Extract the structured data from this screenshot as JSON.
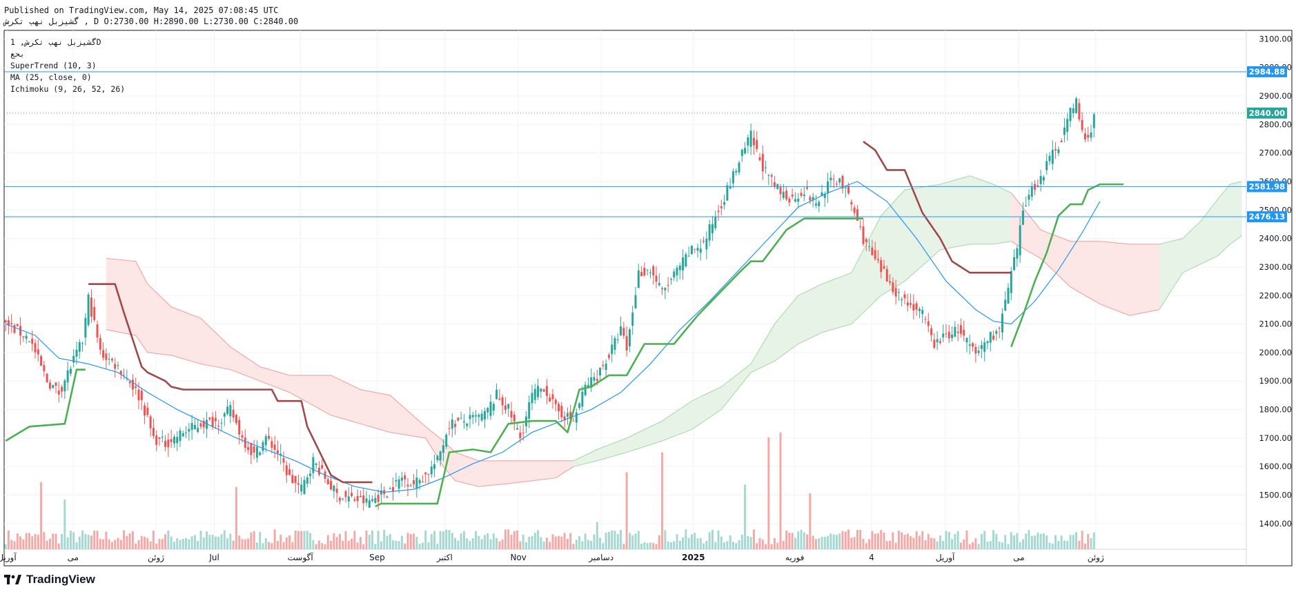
{
  "header": {
    "published": "Published on TradingView.com, May 14, 2025 07:08:45 UTC",
    "symbol_line": "گشیزبل نهب تکرش , D O:2730.00 H:2890.00 L:2730.00 C:2840.00"
  },
  "legend": {
    "symbol": "گشیزبل نهب تکرش, 1D",
    "exchange": "بحع",
    "supertrend": "SuperTrend (10, 3)",
    "ma": "MA (25, close, 0)",
    "ichimoku": "Ichimoku (9, 26, 52, 26)"
  },
  "brand": {
    "name": "TradingView",
    "icon": "tradingview-logo-icon"
  },
  "colors": {
    "up": "#26a69a",
    "down": "#ef5350",
    "supertrend_up": "#4caf50",
    "supertrend_down": "#a04848",
    "ma": "#2196f3",
    "hline": "#2196f3",
    "cloud_bull": "#e6f3e6",
    "cloud_bear": "#fde6e6",
    "last_price": "#26a69a"
  },
  "chart_data": {
    "type": "candlestick",
    "ylim": [
      1310,
      3130
    ],
    "y_ticks": [
      1400,
      1500,
      1600,
      1700,
      1800,
      1900,
      2000,
      2100,
      2200,
      2300,
      2400,
      2500,
      2600,
      2700,
      2800,
      2900,
      3000,
      3100
    ],
    "y_tick_labels": [
      "1400.00",
      "1500.00",
      "1600.00",
      "1700.00",
      "1800.00",
      "1900.00",
      "2000.00",
      "2100.00",
      "2200.00",
      "2300.00",
      "2400.00",
      "2500.00",
      "2600.00",
      "2700.00",
      "2800.00",
      "2900.00",
      "3000.00",
      "3100.00"
    ],
    "x_labels": [
      "آوریل",
      "می",
      "ژوئن",
      "Jul",
      "آگوست",
      "Sep",
      "اکتبر",
      "Nov",
      "دسامبر",
      "2025",
      "فوریه",
      "4",
      "آوریل",
      "می",
      "ژوئن"
    ],
    "horizontal_lines": [
      {
        "value": 2984.88,
        "label": "2984.88"
      },
      {
        "value": 2581.98,
        "label": "2581.98"
      },
      {
        "value": 2476.13,
        "label": "2476.13"
      }
    ],
    "last_price": {
      "value": 2840.0,
      "label": "2840.00"
    },
    "close_path": [
      [
        0,
        2100
      ],
      [
        8,
        2050
      ],
      [
        14,
        1900
      ],
      [
        18,
        1860
      ],
      [
        22,
        1950
      ],
      [
        26,
        2040
      ],
      [
        28,
        2190
      ],
      [
        30,
        2100
      ],
      [
        32,
        2000
      ],
      [
        38,
        1950
      ],
      [
        42,
        1900
      ],
      [
        46,
        1830
      ],
      [
        50,
        1700
      ],
      [
        54,
        1680
      ],
      [
        60,
        1720
      ],
      [
        66,
        1750
      ],
      [
        72,
        1760
      ],
      [
        76,
        1800
      ],
      [
        80,
        1700
      ],
      [
        84,
        1640
      ],
      [
        88,
        1700
      ],
      [
        92,
        1650
      ],
      [
        96,
        1560
      ],
      [
        100,
        1520
      ],
      [
        104,
        1620
      ],
      [
        108,
        1560
      ],
      [
        112,
        1500
      ],
      [
        116,
        1490
      ],
      [
        122,
        1475
      ],
      [
        126,
        1495
      ],
      [
        130,
        1520
      ],
      [
        134,
        1560
      ],
      [
        138,
        1540
      ],
      [
        142,
        1570
      ],
      [
        146,
        1620
      ],
      [
        150,
        1750
      ],
      [
        156,
        1760
      ],
      [
        162,
        1780
      ],
      [
        166,
        1850
      ],
      [
        170,
        1800
      ],
      [
        174,
        1700
      ],
      [
        178,
        1850
      ],
      [
        182,
        1880
      ],
      [
        186,
        1800
      ],
      [
        192,
        1760
      ],
      [
        196,
        1880
      ],
      [
        200,
        1920
      ],
      [
        204,
        1990
      ],
      [
        208,
        2080
      ],
      [
        210,
        2010
      ],
      [
        214,
        2280
      ],
      [
        218,
        2290
      ],
      [
        222,
        2210
      ],
      [
        228,
        2300
      ],
      [
        232,
        2360
      ],
      [
        236,
        2380
      ],
      [
        240,
        2480
      ],
      [
        244,
        2570
      ],
      [
        248,
        2670
      ],
      [
        252,
        2760
      ],
      [
        254,
        2700
      ],
      [
        258,
        2610
      ],
      [
        262,
        2560
      ],
      [
        266,
        2540
      ],
      [
        270,
        2570
      ],
      [
        274,
        2520
      ],
      [
        278,
        2590
      ],
      [
        282,
        2610
      ],
      [
        286,
        2520
      ],
      [
        290,
        2400
      ],
      [
        294,
        2320
      ],
      [
        298,
        2260
      ],
      [
        302,
        2200
      ],
      [
        306,
        2170
      ],
      [
        310,
        2130
      ],
      [
        314,
        2030
      ],
      [
        318,
        2060
      ],
      [
        322,
        2080
      ],
      [
        326,
        2020
      ],
      [
        328,
        1990
      ],
      [
        332,
        2050
      ],
      [
        336,
        2080
      ],
      [
        340,
        2270
      ],
      [
        342,
        2360
      ],
      [
        344,
        2500
      ],
      [
        346,
        2560
      ],
      [
        350,
        2610
      ],
      [
        354,
        2700
      ],
      [
        356,
        2730
      ],
      [
        360,
        2840
      ],
      [
        362,
        2880
      ],
      [
        364,
        2770
      ],
      [
        366,
        2740
      ],
      [
        368,
        2840
      ]
    ],
    "supertrend": [
      {
        "trend": "up",
        "points": [
          [
            0,
            1690
          ],
          [
            8,
            1740
          ],
          [
            20,
            1750
          ],
          [
            24,
            1940
          ],
          [
            27,
            1940
          ]
        ]
      },
      {
        "trend": "down",
        "points": [
          [
            28,
            2240
          ],
          [
            37,
            2240
          ],
          [
            40,
            2140
          ],
          [
            46,
            1950
          ],
          [
            48,
            1930
          ],
          [
            54,
            1900
          ],
          [
            56,
            1880
          ],
          [
            60,
            1870
          ],
          [
            90,
            1870
          ],
          [
            92,
            1830
          ],
          [
            100,
            1830
          ],
          [
            102,
            1740
          ],
          [
            110,
            1570
          ],
          [
            114,
            1545
          ],
          [
            124,
            1545
          ]
        ]
      },
      {
        "trend": "up",
        "points": [
          [
            125,
            1460
          ],
          [
            127,
            1470
          ],
          [
            135,
            1470
          ],
          [
            146,
            1470
          ],
          [
            150,
            1650
          ],
          [
            158,
            1660
          ],
          [
            164,
            1650
          ],
          [
            170,
            1750
          ],
          [
            178,
            1760
          ],
          [
            186,
            1760
          ],
          [
            190,
            1720
          ],
          [
            194,
            1870
          ],
          [
            198,
            1880
          ],
          [
            204,
            1920
          ],
          [
            210,
            1920
          ],
          [
            216,
            2030
          ],
          [
            226,
            2030
          ],
          [
            234,
            2130
          ],
          [
            248,
            2280
          ],
          [
            252,
            2320
          ],
          [
            256,
            2320
          ],
          [
            264,
            2430
          ],
          [
            270,
            2470
          ],
          [
            290,
            2470
          ]
        ]
      },
      {
        "trend": "down",
        "points": [
          [
            290,
            2740
          ],
          [
            294,
            2710
          ],
          [
            298,
            2640
          ],
          [
            304,
            2640
          ],
          [
            310,
            2490
          ],
          [
            316,
            2400
          ],
          [
            320,
            2320
          ],
          [
            326,
            2280
          ],
          [
            336,
            2280
          ],
          [
            340,
            2280
          ]
        ]
      },
      {
        "trend": "up",
        "points": [
          [
            340,
            2020
          ],
          [
            344,
            2130
          ],
          [
            348,
            2250
          ],
          [
            352,
            2350
          ],
          [
            356,
            2480
          ],
          [
            360,
            2520
          ],
          [
            364,
            2520
          ],
          [
            366,
            2570
          ],
          [
            370,
            2590
          ],
          [
            378,
            2590
          ]
        ]
      }
    ],
    "ma_path": [
      [
        0,
        2100
      ],
      [
        10,
        2060
      ],
      [
        18,
        1980
      ],
      [
        28,
        1960
      ],
      [
        38,
        1930
      ],
      [
        48,
        1860
      ],
      [
        58,
        1800
      ],
      [
        68,
        1750
      ],
      [
        78,
        1700
      ],
      [
        88,
        1660
      ],
      [
        98,
        1620
      ],
      [
        108,
        1570
      ],
      [
        118,
        1530
      ],
      [
        128,
        1510
      ],
      [
        138,
        1520
      ],
      [
        148,
        1560
      ],
      [
        158,
        1610
      ],
      [
        168,
        1650
      ],
      [
        178,
        1720
      ],
      [
        188,
        1760
      ],
      [
        198,
        1800
      ],
      [
        208,
        1860
      ],
      [
        218,
        1960
      ],
      [
        228,
        2080
      ],
      [
        238,
        2180
      ],
      [
        248,
        2290
      ],
      [
        258,
        2400
      ],
      [
        268,
        2510
      ],
      [
        278,
        2560
      ],
      [
        288,
        2600
      ],
      [
        298,
        2530
      ],
      [
        308,
        2400
      ],
      [
        318,
        2250
      ],
      [
        328,
        2150
      ],
      [
        334,
        2110
      ],
      [
        340,
        2100
      ],
      [
        348,
        2180
      ],
      [
        356,
        2290
      ],
      [
        364,
        2420
      ],
      [
        370,
        2530
      ]
    ],
    "ichimoku_cloud": [
      {
        "kind": "bear",
        "top": [
          [
            34,
            2330
          ],
          [
            44,
            2320
          ],
          [
            48,
            2240
          ],
          [
            56,
            2160
          ],
          [
            66,
            2120
          ],
          [
            76,
            2020
          ],
          [
            86,
            1950
          ],
          [
            96,
            1920
          ],
          [
            110,
            1920
          ],
          [
            120,
            1870
          ],
          [
            130,
            1850
          ],
          [
            142,
            1740
          ],
          [
            148,
            1690
          ],
          [
            152,
            1650
          ],
          [
            160,
            1620
          ],
          [
            170,
            1620
          ],
          [
            186,
            1620
          ],
          [
            192,
            1620
          ]
        ],
        "bottom": [
          [
            34,
            2080
          ],
          [
            44,
            2060
          ],
          [
            48,
            2000
          ],
          [
            56,
            1990
          ],
          [
            66,
            1960
          ],
          [
            76,
            1940
          ],
          [
            86,
            1900
          ],
          [
            96,
            1860
          ],
          [
            110,
            1780
          ],
          [
            120,
            1750
          ],
          [
            130,
            1720
          ],
          [
            142,
            1700
          ],
          [
            148,
            1600
          ],
          [
            152,
            1550
          ],
          [
            160,
            1530
          ],
          [
            170,
            1540
          ],
          [
            186,
            1560
          ],
          [
            192,
            1600
          ]
        ]
      },
      {
        "kind": "bull",
        "top": [
          [
            192,
            1620
          ],
          [
            200,
            1660
          ],
          [
            210,
            1700
          ],
          [
            222,
            1760
          ],
          [
            232,
            1830
          ],
          [
            242,
            1880
          ],
          [
            252,
            1960
          ],
          [
            260,
            2100
          ],
          [
            268,
            2200
          ],
          [
            276,
            2240
          ],
          [
            286,
            2280
          ],
          [
            296,
            2480
          ],
          [
            304,
            2570
          ],
          [
            316,
            2590
          ],
          [
            326,
            2620
          ],
          [
            334,
            2590
          ],
          [
            340,
            2560
          ]
        ],
        "bottom": [
          [
            192,
            1600
          ],
          [
            200,
            1620
          ],
          [
            210,
            1650
          ],
          [
            222,
            1690
          ],
          [
            232,
            1730
          ],
          [
            242,
            1800
          ],
          [
            252,
            1930
          ],
          [
            260,
            1970
          ],
          [
            268,
            2030
          ],
          [
            276,
            2070
          ],
          [
            286,
            2100
          ],
          [
            296,
            2200
          ],
          [
            304,
            2250
          ],
          [
            316,
            2360
          ],
          [
            326,
            2380
          ],
          [
            334,
            2380
          ],
          [
            340,
            2390
          ]
        ]
      },
      {
        "kind": "bear",
        "top": [
          [
            340,
            2560
          ],
          [
            350,
            2430
          ],
          [
            360,
            2390
          ],
          [
            370,
            2390
          ],
          [
            380,
            2380
          ],
          [
            390,
            2380
          ]
        ],
        "bottom": [
          [
            340,
            2390
          ],
          [
            350,
            2330
          ],
          [
            360,
            2230
          ],
          [
            370,
            2170
          ],
          [
            380,
            2130
          ],
          [
            390,
            2150
          ]
        ]
      },
      {
        "kind": "bull",
        "top": [
          [
            390,
            2380
          ],
          [
            398,
            2400
          ],
          [
            404,
            2460
          ],
          [
            410,
            2540
          ],
          [
            414,
            2590
          ],
          [
            418,
            2600
          ]
        ],
        "bottom": [
          [
            390,
            2150
          ],
          [
            398,
            2280
          ],
          [
            404,
            2310
          ],
          [
            410,
            2340
          ],
          [
            414,
            2380
          ],
          [
            418,
            2410
          ]
        ]
      }
    ],
    "volume_spikes": [
      [
        12,
        0.54
      ],
      [
        20,
        0.4
      ],
      [
        78,
        0.5
      ],
      [
        200,
        0.22
      ],
      [
        210,
        0.62
      ],
      [
        222,
        0.78
      ],
      [
        250,
        0.52
      ],
      [
        258,
        0.9
      ],
      [
        262,
        0.94
      ],
      [
        272,
        0.45
      ]
    ]
  }
}
